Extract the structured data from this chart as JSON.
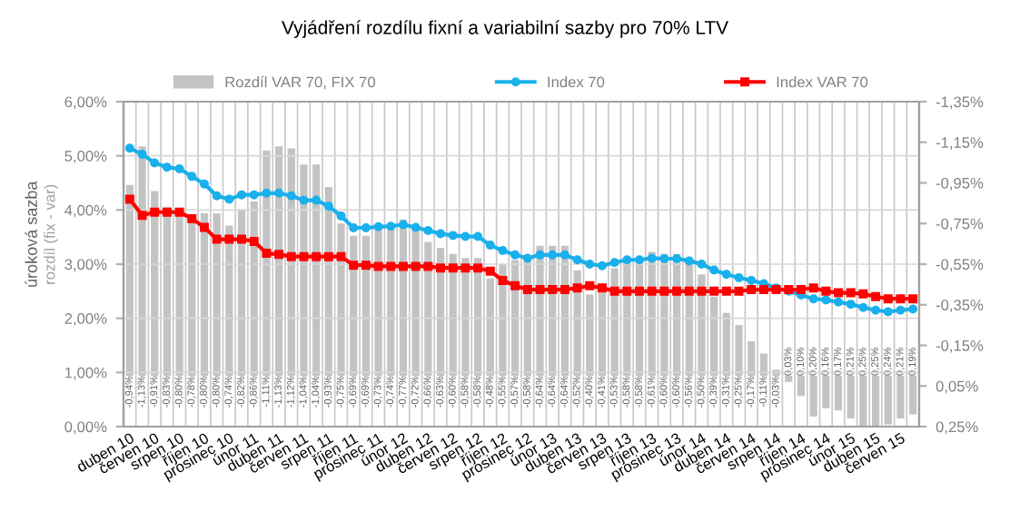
{
  "chart_data": {
    "type": "line",
    "title": "Vyjádření rozdílu fixní a variabilní sazby pro 70% LTV",
    "ylabel": "úroková sazba",
    "annotations": [
      "rozdíl (fix - var)"
    ],
    "categories": [
      "duben 10",
      null,
      "červen 10",
      null,
      "srpen 10",
      null,
      "říjen 10",
      null,
      "prosinec 10",
      null,
      "únor 11",
      null,
      "duben 11",
      null,
      "červen 11",
      null,
      "srpen 11",
      null,
      "říjen 11",
      null,
      "prosinec 11",
      null,
      "únor 12",
      null,
      "duben 12",
      null,
      "červen 12",
      null,
      "srpen 12",
      null,
      "říjen 12",
      null,
      "prosinec 12",
      null,
      "únor 13",
      null,
      "duben 13",
      null,
      "červen 13",
      null,
      "srpen 13",
      null,
      "říjen 13",
      null,
      "prosinec 13",
      null,
      "únor 14",
      null,
      "duben 14",
      null,
      "červen 14",
      null,
      "srpen 14",
      null,
      "říjen 14",
      null,
      "prosinec 14",
      null,
      "únor 15",
      null,
      "duben 15",
      null,
      "červen 15",
      null
    ],
    "series": [
      {
        "name": "Rozdíl VAR 70, FIX 70",
        "type": "bar",
        "axis": "y2",
        "color": "#c3c3c3",
        "values": [
          -0.94,
          -1.13,
          -0.91,
          -0.83,
          -0.8,
          -0.78,
          -0.8,
          -0.8,
          -0.74,
          -0.82,
          -0.86,
          -1.11,
          -1.13,
          -1.12,
          -1.04,
          -1.04,
          -0.93,
          -0.75,
          -0.69,
          -0.69,
          -0.73,
          -0.74,
          -0.77,
          -0.72,
          -0.66,
          -0.63,
          -0.6,
          -0.58,
          -0.58,
          -0.48,
          -0.55,
          -0.57,
          -0.58,
          -0.64,
          -0.64,
          -0.64,
          -0.52,
          -0.4,
          -0.41,
          -0.53,
          -0.58,
          -0.58,
          -0.61,
          -0.6,
          -0.6,
          -0.56,
          -0.5,
          -0.39,
          -0.31,
          -0.25,
          -0.17,
          -0.11,
          -0.03,
          0.03,
          0.1,
          0.2,
          0.16,
          0.17,
          0.21,
          0.25,
          0.25,
          0.24,
          0.21,
          0.19
        ],
        "value_labels": [
          "-0,94%",
          "-1,13%",
          "-0,91%",
          "-0,83%",
          "-0,80%",
          "-0,78%",
          "-0,80%",
          "-0,80%",
          "-0,74%",
          "-0,82%",
          "-0,86%",
          "-1,11%",
          "-1,13%",
          "-1,12%",
          "-1,04%",
          "-1,04%",
          "-0,93%",
          "-0,75%",
          "-0,69%",
          "-0,69%",
          "-0,73%",
          "-0,74%",
          "-0,77%",
          "-0,72%",
          "-0,66%",
          "-0,63%",
          "-0,60%",
          "-0,58%",
          "-0,58%",
          "-0,48%",
          "-0,55%",
          "-0,57%",
          "-0,58%",
          "-0,64%",
          "-0,64%",
          "-0,64%",
          "-0,52%",
          "-0,40%",
          "-0,41%",
          "-0,53%",
          "-0,58%",
          "-0,58%",
          "-0,61%",
          "-0,60%",
          "-0,60%",
          "-0,56%",
          "-0,50%",
          "-0,39%",
          "-0,31%",
          "-0,25%",
          "-0,17%",
          "-0,11%",
          "-0,03%",
          "0,03%",
          "0,10%",
          "0,20%",
          "0,16%",
          "0,17%",
          "0,21%",
          "0,25%",
          "0,25%",
          "0,24%",
          "0,21%",
          "0,19%"
        ]
      },
      {
        "name": "Index 70",
        "color": "#1ab0ec",
        "marker": "circle",
        "values": [
          5.14,
          5.03,
          4.87,
          4.79,
          4.76,
          4.62,
          4.48,
          4.26,
          4.2,
          4.28,
          4.28,
          4.31,
          4.31,
          4.26,
          4.18,
          4.18,
          4.07,
          3.89,
          3.67,
          3.67,
          3.69,
          3.7,
          3.73,
          3.68,
          3.62,
          3.56,
          3.53,
          3.51,
          3.51,
          3.35,
          3.25,
          3.17,
          3.11,
          3.17,
          3.17,
          3.17,
          3.08,
          3.0,
          2.97,
          3.03,
          3.08,
          3.08,
          3.11,
          3.1,
          3.1,
          3.06,
          3.0,
          2.89,
          2.81,
          2.75,
          2.7,
          2.64,
          2.56,
          2.5,
          2.43,
          2.36,
          2.34,
          2.3,
          2.26,
          2.2,
          2.15,
          2.12,
          2.15,
          2.17
        ]
      },
      {
        "name": "Index VAR 70",
        "color": "#ff0000",
        "marker": "square",
        "values": [
          4.2,
          3.9,
          3.96,
          3.96,
          3.96,
          3.84,
          3.68,
          3.46,
          3.46,
          3.46,
          3.42,
          3.2,
          3.18,
          3.14,
          3.14,
          3.14,
          3.14,
          3.14,
          2.98,
          2.98,
          2.96,
          2.96,
          2.96,
          2.96,
          2.96,
          2.93,
          2.93,
          2.93,
          2.93,
          2.87,
          2.7,
          2.6,
          2.53,
          2.53,
          2.53,
          2.53,
          2.56,
          2.6,
          2.56,
          2.5,
          2.5,
          2.5,
          2.5,
          2.5,
          2.5,
          2.5,
          2.5,
          2.5,
          2.5,
          2.5,
          2.53,
          2.53,
          2.53,
          2.53,
          2.53,
          2.56,
          2.5,
          2.47,
          2.47,
          2.45,
          2.4,
          2.36,
          2.36,
          2.36
        ]
      }
    ],
    "ylim": [
      0,
      6
    ],
    "yticks": [
      {
        "value": 0,
        "label": "0,00%"
      },
      {
        "value": 1,
        "label": "1,00%"
      },
      {
        "value": 2,
        "label": "2,00%"
      },
      {
        "value": 3,
        "label": "3,00%"
      },
      {
        "value": 4,
        "label": "4,00%"
      },
      {
        "value": 5,
        "label": "5,00%"
      },
      {
        "value": 6,
        "label": "6,00%"
      }
    ],
    "y2lim": [
      0.25,
      -1.35
    ],
    "y2ticks": [
      {
        "value": 0.25,
        "label": "0,25%"
      },
      {
        "value": 0.05,
        "label": "0,05%"
      },
      {
        "value": -0.15,
        "label": "-0,15%"
      },
      {
        "value": -0.35,
        "label": "-0,35%"
      },
      {
        "value": -0.55,
        "label": "-0,55%"
      },
      {
        "value": -0.75,
        "label": "-0,75%"
      },
      {
        "value": -0.95,
        "label": "-0,95%"
      },
      {
        "value": -1.15,
        "label": "-1,15%"
      },
      {
        "value": -1.35,
        "label": "-1,35%"
      }
    ],
    "grid": true,
    "legend": "top"
  }
}
